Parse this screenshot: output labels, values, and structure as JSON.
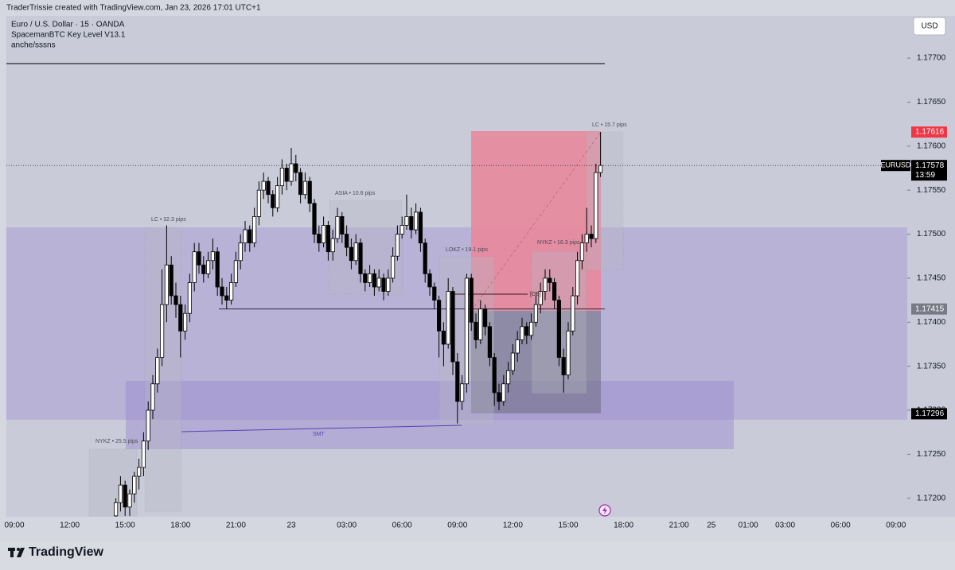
{
  "header": {
    "credit": "TraderTrissie created with TradingView.com, Jan 23, 2026 17:01 UTC+1",
    "symbol_title": "Euro / U.S. Dollar · 15 · OANDA",
    "indicator": "SpacemanBTC Key Level V13.1",
    "indicator_2": "anche/sssns",
    "currency_button": "USD",
    "brand": "TradingView"
  },
  "chart_data": {
    "type": "candlestick",
    "up_color": "#ffffff",
    "down_color": "#000000",
    "ylim": [
      1.17179,
      1.17766
    ],
    "yticks": [
      {
        "value": 1.172,
        "label": "1.17200"
      },
      {
        "value": 1.1725,
        "label": "1.17250"
      },
      {
        "value": 1.173,
        "label": "1.17300"
      },
      {
        "value": 1.1735,
        "label": "1.17350"
      },
      {
        "value": 1.174,
        "label": "1.17400"
      },
      {
        "value": 1.1745,
        "label": "1.17450"
      },
      {
        "value": 1.175,
        "label": "1.17500"
      },
      {
        "value": 1.1755,
        "label": "1.17550"
      },
      {
        "value": 1.176,
        "label": "1.17600"
      },
      {
        "value": 1.1765,
        "label": "1.17650"
      },
      {
        "value": 1.177,
        "label": "1.17700"
      }
    ],
    "categories": [
      "09:00",
      null,
      null,
      null,
      null,
      null,
      null,
      null,
      null,
      null,
      null,
      null,
      "12:00",
      null,
      null,
      null,
      null,
      null,
      null,
      null,
      null,
      null,
      null,
      null,
      "15:00",
      null,
      null,
      null,
      null,
      null,
      null,
      null,
      null,
      null,
      null,
      null,
      "18:00",
      null,
      null,
      null,
      null,
      null,
      null,
      null,
      null,
      null,
      null,
      null,
      "21:00",
      null,
      null,
      null,
      null,
      null,
      null,
      null,
      null,
      null,
      null,
      null,
      "23",
      null,
      null,
      null,
      null,
      null,
      null,
      null,
      null,
      null,
      null,
      null,
      "03:00",
      null,
      null,
      null,
      null,
      null,
      null,
      null,
      null,
      null,
      null,
      null,
      "06:00",
      null,
      null,
      null,
      null,
      null,
      null,
      null,
      null,
      null,
      null,
      null,
      "09:00",
      null,
      null,
      null,
      null,
      null,
      null,
      null,
      null,
      null,
      null,
      null,
      "12:00",
      null,
      null,
      null,
      null,
      null,
      null,
      null,
      null,
      null,
      null,
      null,
      "15:00",
      null,
      null,
      null,
      null,
      null,
      null,
      null,
      null,
      null,
      null,
      null,
      "18:00",
      null,
      null,
      null,
      null,
      null,
      null,
      null,
      null,
      null,
      null,
      null,
      "21:00",
      null,
      null,
      null,
      null,
      null,
      null,
      "25",
      null,
      null,
      null,
      null,
      null,
      null,
      null,
      "01:00",
      null,
      null,
      null,
      null,
      null,
      null,
      null,
      "03:00",
      null,
      null,
      null,
      null,
      null,
      null,
      null,
      null,
      null,
      null,
      null,
      "06:00",
      null,
      null,
      null,
      null,
      null,
      null,
      null,
      null,
      null,
      null,
      null,
      "09:00",
      null
    ],
    "values": [
      null,
      null,
      null,
      null,
      null,
      null,
      null,
      null,
      null,
      null,
      null,
      null,
      null,
      null,
      null,
      null,
      null,
      null,
      null,
      null,
      null,
      null,
      [
        1.1718,
        1.172,
        1.1717,
        1.17195
      ],
      [
        1.17195,
        1.17225,
        1.17185,
        1.17215
      ],
      [
        1.17215,
        1.1722,
        1.1718,
        1.1719
      ],
      [
        1.1719,
        1.1721,
        1.1718,
        1.17205
      ],
      [
        1.17205,
        1.1723,
        1.17195,
        1.17225
      ],
      [
        1.17225,
        1.17245,
        1.1721,
        1.17235
      ],
      [
        1.17235,
        1.17275,
        1.17225,
        1.17265
      ],
      [
        1.17265,
        1.1731,
        1.17255,
        1.173
      ],
      [
        1.173,
        1.1734,
        1.1729,
        1.1733
      ],
      [
        1.1733,
        1.1737,
        1.1732,
        1.1736
      ],
      [
        1.1736,
        1.1746,
        1.1735,
        1.1742
      ],
      [
        1.1742,
        1.1751,
        1.174,
        1.17465
      ],
      [
        1.17465,
        1.17475,
        1.1742,
        1.1743
      ],
      [
        1.1743,
        1.17445,
        1.17405,
        1.1742
      ],
      [
        1.1742,
        1.1743,
        1.1736,
        1.1739
      ],
      [
        1.1739,
        1.1742,
        1.1738,
        1.1741
      ],
      [
        1.1741,
        1.17455,
        1.174,
        1.17445
      ],
      [
        1.17445,
        1.1749,
        1.17435,
        1.1748
      ],
      [
        1.1748,
        1.1749,
        1.17455,
        1.17465
      ],
      [
        1.17465,
        1.17475,
        1.17445,
        1.17455
      ],
      [
        1.17455,
        1.1748,
        1.1745,
        1.1747
      ],
      [
        1.1747,
        1.17495,
        1.1746,
        1.1748
      ],
      [
        1.1748,
        1.17485,
        1.1743,
        1.1744
      ],
      [
        1.1744,
        1.1745,
        1.1742,
        1.1743
      ],
      [
        1.1743,
        1.1744,
        1.17415,
        1.17425
      ],
      [
        1.17425,
        1.17455,
        1.1742,
        1.17445
      ],
      [
        1.17445,
        1.1748,
        1.1744,
        1.1747
      ],
      [
        1.1747,
        1.175,
        1.1746,
        1.1749
      ],
      [
        1.1749,
        1.17515,
        1.1748,
        1.17505
      ],
      [
        1.17505,
        1.1751,
        1.1748,
        1.1749
      ],
      [
        1.1749,
        1.1753,
        1.17485,
        1.1752
      ],
      [
        1.1752,
        1.1756,
        1.1751,
        1.1755
      ],
      [
        1.1755,
        1.1757,
        1.1754,
        1.1756
      ],
      [
        1.1756,
        1.17565,
        1.17535,
        1.17545
      ],
      [
        1.17545,
        1.1755,
        1.1752,
        1.1753
      ],
      [
        1.1753,
        1.17565,
        1.17525,
        1.17555
      ],
      [
        1.17555,
        1.17585,
        1.17545,
        1.17575
      ],
      [
        1.17575,
        1.1758,
        1.1755,
        1.1756
      ],
      [
        1.1756,
        1.17598,
        1.17555,
        1.1758
      ],
      [
        1.1758,
        1.1759,
        1.1756,
        1.1757
      ],
      [
        1.1757,
        1.17575,
        1.17535,
        1.17545
      ],
      [
        1.17545,
        1.1757,
        1.1754,
        1.1756
      ],
      [
        1.1756,
        1.17565,
        1.17525,
        1.17535
      ],
      [
        1.17535,
        1.1754,
        1.1749,
        1.175
      ],
      [
        1.175,
        1.1751,
        1.1748,
        1.1749
      ],
      [
        1.1749,
        1.1752,
        1.17485,
        1.1751
      ],
      [
        1.1751,
        1.17515,
        1.1747,
        1.1748
      ],
      [
        1.1748,
        1.17505,
        1.1747,
        1.17495
      ],
      [
        1.17495,
        1.1753,
        1.1749,
        1.1752
      ],
      [
        1.1752,
        1.17525,
        1.1749,
        1.175
      ],
      [
        1.175,
        1.1751,
        1.17475,
        1.17485
      ],
      [
        1.17485,
        1.17495,
        1.1746,
        1.1747
      ],
      [
        1.1747,
        1.175,
        1.17465,
        1.1749
      ],
      [
        1.1749,
        1.17495,
        1.17445,
        1.17455
      ],
      [
        1.17455,
        1.1746,
        1.17435,
        1.17445
      ],
      [
        1.17445,
        1.17465,
        1.1744,
        1.17455
      ],
      [
        1.17455,
        1.1746,
        1.1743,
        1.1744
      ],
      [
        1.1744,
        1.1746,
        1.17435,
        1.1745
      ],
      [
        1.1745,
        1.17455,
        1.17425,
        1.17435
      ],
      [
        1.17435,
        1.1746,
        1.1743,
        1.1745
      ],
      [
        1.1745,
        1.17485,
        1.17445,
        1.17475
      ],
      [
        1.17475,
        1.1751,
        1.1747,
        1.175
      ],
      [
        1.175,
        1.1752,
        1.17495,
        1.1751
      ],
      [
        1.1751,
        1.17545,
        1.17505,
        1.1752
      ],
      [
        1.1752,
        1.1753,
        1.17495,
        1.17505
      ],
      [
        1.17505,
        1.17535,
        1.175,
        1.17525
      ],
      [
        1.17525,
        1.1753,
        1.1748,
        1.1749
      ],
      [
        1.1749,
        1.17495,
        1.17445,
        1.17455
      ],
      [
        1.17455,
        1.1746,
        1.1743,
        1.1744
      ],
      [
        1.1744,
        1.17445,
        1.17415,
        1.17425
      ],
      [
        1.17425,
        1.1743,
        1.1736,
        1.1739
      ],
      [
        1.1739,
        1.174,
        1.1735,
        1.17375
      ],
      [
        1.17375,
        1.1745,
        1.1737,
        1.17435
      ],
      [
        1.17435,
        1.1744,
        1.1734,
        1.17355
      ],
      [
        1.17355,
        1.17365,
        1.17285,
        1.1731
      ],
      [
        1.1731,
        1.1734,
        1.173,
        1.1733
      ],
      [
        1.1733,
        1.17455,
        1.1732,
        1.1745
      ],
      [
        1.1745,
        1.17455,
        1.1739,
        1.174
      ],
      [
        1.174,
        1.1741,
        1.1737,
        1.1738
      ],
      [
        1.1738,
        1.17425,
        1.17375,
        1.17415
      ],
      [
        1.17415,
        1.1742,
        1.17385,
        1.17395
      ],
      [
        1.17395,
        1.174,
        1.1735,
        1.1736
      ],
      [
        1.1736,
        1.17365,
        1.17305,
        1.1732
      ],
      [
        1.1732,
        1.1733,
        1.173,
        1.1731
      ],
      [
        1.1731,
        1.1734,
        1.17305,
        1.1733
      ],
      [
        1.1733,
        1.17355,
        1.1732,
        1.17345
      ],
      [
        1.17345,
        1.17375,
        1.1734,
        1.17365
      ],
      [
        1.17365,
        1.1739,
        1.17355,
        1.1738
      ],
      [
        1.1738,
        1.17405,
        1.17375,
        1.17395
      ],
      [
        1.17395,
        1.174,
        1.17375,
        1.17385
      ],
      [
        1.17385,
        1.1741,
        1.1738,
        1.174
      ],
      [
        1.174,
        1.1743,
        1.17395,
        1.1742
      ],
      [
        1.1742,
        1.17445,
        1.1741,
        1.17435
      ],
      [
        1.17435,
        1.1746,
        1.17425,
        1.1745
      ],
      [
        1.1745,
        1.1746,
        1.17435,
        1.17445
      ],
      [
        1.17445,
        1.1745,
        1.17415,
        1.17425
      ],
      [
        1.17425,
        1.1743,
        1.1735,
        1.1736
      ],
      [
        1.1736,
        1.1737,
        1.1732,
        1.1734
      ],
      [
        1.1734,
        1.174,
        1.17335,
        1.1739
      ],
      [
        1.1739,
        1.1744,
        1.17385,
        1.1743
      ],
      [
        1.1743,
        1.1748,
        1.1742,
        1.1747
      ],
      [
        1.1747,
        1.175,
        1.1746,
        1.1749
      ],
      [
        1.1749,
        1.1753,
        1.1748,
        1.175
      ],
      [
        1.175,
        1.1751,
        1.17485,
        1.17495
      ],
      [
        1.17495,
        1.1758,
        1.1749,
        1.1757
      ],
      [
        1.1757,
        1.17616,
        1.17565,
        1.17578
      ],
      null,
      null,
      null,
      null,
      null,
      null,
      null,
      null,
      null,
      null,
      null,
      null,
      null,
      null,
      null,
      null,
      null,
      null,
      null,
      null,
      null,
      null,
      null,
      null,
      null,
      null,
      null,
      null,
      null,
      null,
      null,
      null,
      null,
      null,
      null,
      null,
      null,
      null,
      null,
      null,
      null,
      null,
      null,
      null,
      null,
      null,
      null,
      null,
      null,
      null,
      null,
      null,
      null,
      null,
      null,
      null,
      null,
      null,
      null,
      null,
      null,
      null,
      null,
      null,
      null
    ],
    "price_labels": [
      {
        "value": 1.17616,
        "color": "#f23645"
      },
      {
        "value": 1.17578,
        "symbol": "EURUSD",
        "countdown": "13:59",
        "color": "#000000"
      },
      {
        "value": 1.17415,
        "color": "#787b86"
      },
      {
        "value": 1.17296,
        "color": "#000000"
      }
    ],
    "annotations": {
      "lc_1": "LC • 32.3 pips",
      "nykz_1": "NYKZ • 25.5 pips",
      "asia": "ASIA • 10.6 pips",
      "lokz": "LOKZ • 19.1 pips",
      "nykz_2": "NYKZ • 16.3 pips",
      "lc_2": "LC • 15.7 pips",
      "smt": "SMT",
      "ob": "[OB]"
    }
  }
}
